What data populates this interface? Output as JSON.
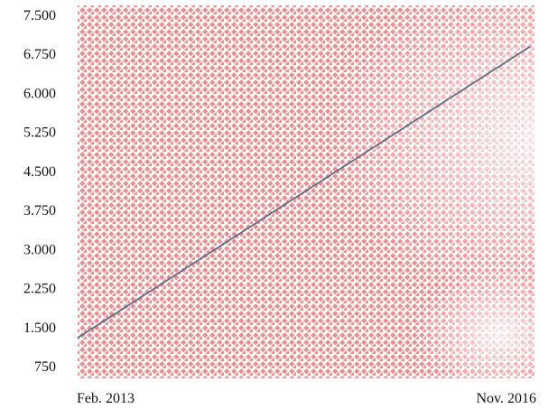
{
  "chart_data": {
    "type": "line",
    "title": "",
    "xlabel": "",
    "ylabel": "",
    "x": [
      "Feb. 2013",
      "Nov. 2016"
    ],
    "series": [
      {
        "values": [
          1300,
          6900
        ]
      }
    ],
    "ylim": [
      400,
      7500
    ],
    "y_ticks": [
      "7.500",
      "6.750",
      "6.000",
      "5.250",
      "4.500",
      "3.750",
      "3.000",
      "2.250",
      "1.500",
      "750"
    ],
    "y_tick_values": [
      7500,
      6750,
      6000,
      5250,
      4500,
      3750,
      3000,
      2250,
      1500,
      750
    ],
    "x_tick_labels": [
      "Feb. 2013",
      "Nov. 2016"
    ],
    "grid": false,
    "legend": "none",
    "colors": {
      "line": "#5a6e85",
      "background_pattern": "#f08c8c",
      "text": "#111111"
    }
  }
}
